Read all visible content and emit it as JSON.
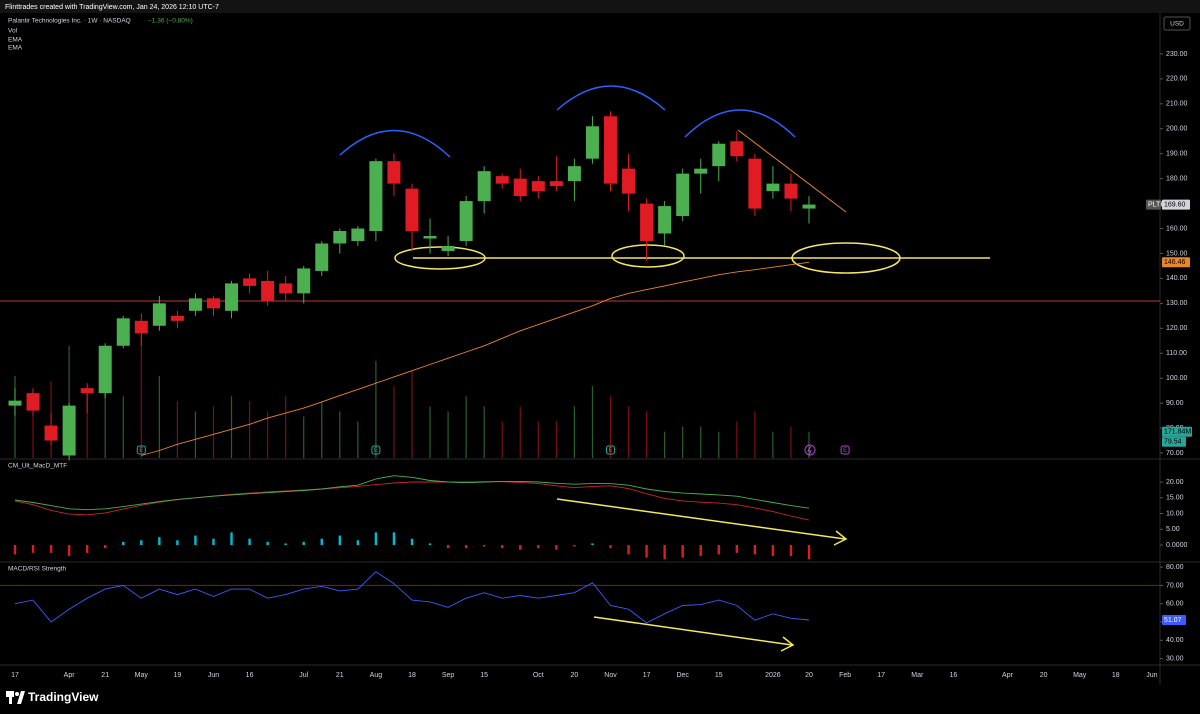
{
  "header": {
    "attribution": "Flinttrades created with TradingView.com, Jan 24, 2026 12:10 UTC-7",
    "brand": "TradingView"
  },
  "chart_data": [
    {
      "type": "candlestick",
      "title": "Palantir Technologies Inc. · 1W · NASDAQ",
      "change": "−1.36 (−0.80%)",
      "change_color": "#4caf50",
      "indicator_labels": [
        "Vol",
        "EMA",
        "EMA"
      ],
      "currency": "USD",
      "x": [
        0,
        1,
        2,
        3,
        4,
        5,
        6,
        7,
        8,
        9,
        10,
        11,
        12,
        13,
        14,
        15,
        16,
        17,
        18,
        19,
        20,
        21,
        22,
        23,
        24,
        25,
        26,
        27,
        28,
        29,
        30,
        31,
        32,
        33,
        34,
        35,
        36,
        37,
        38,
        39,
        40,
        41,
        42,
        43,
        44
      ],
      "open": [
        89,
        94,
        81,
        69,
        96,
        94,
        113,
        123,
        121,
        125,
        127,
        132,
        127,
        140,
        139,
        138,
        134,
        143,
        154,
        155,
        159,
        187,
        176,
        156,
        151,
        155,
        171,
        181,
        180,
        179,
        179,
        179,
        188,
        205,
        184,
        170,
        158,
        165,
        182,
        185,
        195,
        188,
        175,
        178,
        168
      ],
      "high": [
        96,
        96,
        86,
        90,
        98,
        114,
        125,
        126,
        133,
        127,
        134,
        133,
        139,
        142,
        143,
        141,
        145,
        155,
        160,
        161,
        188,
        190,
        178,
        164,
        157,
        173,
        185,
        182,
        184,
        181,
        189,
        188,
        205,
        207,
        190,
        172,
        171,
        184,
        188,
        195,
        199,
        190,
        185,
        182,
        173
      ],
      "low": [
        85,
        85,
        73,
        67,
        86,
        92,
        112,
        113,
        119,
        120,
        125,
        125,
        124,
        134,
        129,
        131,
        130,
        141,
        150,
        153,
        155,
        173,
        151,
        150,
        149,
        153,
        166,
        176,
        171,
        172,
        175,
        171,
        186,
        175,
        167,
        147,
        153,
        163,
        174,
        179,
        187,
        165,
        172,
        167,
        162
      ],
      "close": [
        91,
        87,
        75,
        89,
        94,
        113,
        124,
        118,
        130,
        123,
        132,
        128,
        138,
        137,
        131,
        134,
        144,
        154,
        159,
        160,
        187,
        178,
        159,
        157,
        153,
        171,
        183,
        178,
        173,
        175,
        177,
        185,
        201,
        178,
        174,
        155,
        169,
        182,
        184,
        194,
        189,
        168,
        178,
        172,
        169.6
      ],
      "up_color": "#4caf50",
      "down_color": "#e01b24",
      "ylim": [
        68,
        246
      ],
      "yticks": [
        {
          "value": 70,
          "label": "70.00"
        },
        {
          "value": 80,
          "label": "80.00"
        },
        {
          "value": 90,
          "label": "90.00"
        },
        {
          "value": 100,
          "label": "100.00"
        },
        {
          "value": 110,
          "label": "110.00"
        },
        {
          "value": 120,
          "label": "120.00"
        },
        {
          "value": 130,
          "label": "130.00"
        },
        {
          "value": 140,
          "label": "140.00"
        },
        {
          "value": 150,
          "label": "150.00"
        },
        {
          "value": 160,
          "label": "160.00"
        },
        {
          "value": 170,
          "label": "170.00"
        },
        {
          "value": 180,
          "label": "180.00"
        },
        {
          "value": 190,
          "label": "190.00"
        },
        {
          "value": 200,
          "label": "200.00"
        },
        {
          "value": 210,
          "label": "210.00"
        },
        {
          "value": 220,
          "label": "220.00"
        },
        {
          "value": 230,
          "label": "230.00"
        }
      ],
      "xlim": [
        -0.83,
        63.45
      ],
      "xticks": [
        {
          "value": 0,
          "label": "17"
        },
        {
          "value": 3,
          "label": "Apr"
        },
        {
          "value": 5,
          "label": "21"
        },
        {
          "value": 7,
          "label": "May"
        },
        {
          "value": 9,
          "label": "19"
        },
        {
          "value": 11,
          "label": "Jun"
        },
        {
          "value": 13,
          "label": "16"
        },
        {
          "value": 16,
          "label": "Jul"
        },
        {
          "value": 18,
          "label": "21"
        },
        {
          "value": 20,
          "label": "Aug"
        },
        {
          "value": 22,
          "label": "18"
        },
        {
          "value": 24,
          "label": "Sep"
        },
        {
          "value": 26,
          "label": "15"
        },
        {
          "value": 29,
          "label": "Oct"
        },
        {
          "value": 31,
          "label": "20"
        },
        {
          "value": 33,
          "label": "Nov"
        },
        {
          "value": 35,
          "label": "17"
        },
        {
          "value": 37,
          "label": "Dec"
        },
        {
          "value": 39,
          "label": "15"
        },
        {
          "value": 42,
          "label": "2026"
        },
        {
          "value": 44,
          "label": "20"
        },
        {
          "value": 46,
          "label": "Feb"
        },
        {
          "value": 48,
          "label": "17"
        },
        {
          "value": 50,
          "label": "Mar"
        },
        {
          "value": 52,
          "label": "16"
        },
        {
          "value": 55,
          "label": "Apr"
        },
        {
          "value": 57,
          "label": "20"
        },
        {
          "value": 59,
          "label": "May"
        },
        {
          "value": 61,
          "label": "18"
        },
        {
          "value": 63,
          "label": "Jun"
        }
      ],
      "volume": {
        "values": [
          536,
          437,
          502,
          733,
          470,
          634,
          403,
          832,
          535,
          370,
          304,
          337,
          403,
          370,
          304,
          403,
          271,
          370,
          304,
          238,
          634,
          469,
          568,
          337,
          304,
          403,
          337,
          238,
          337,
          238,
          238,
          337,
          469,
          403,
          337,
          304,
          172,
          205,
          205,
          172,
          238,
          304,
          172,
          205,
          171.84
        ],
        "ylim": [
          0,
          2900
        ],
        "label": "171.84M",
        "ma_label": "79.54",
        "color": "#26a69a"
      },
      "ema": {
        "values": [
          null,
          null,
          null,
          null,
          null,
          null,
          null,
          69,
          71,
          73.5,
          75.5,
          77.5,
          79.5,
          81.5,
          84,
          86,
          88,
          90.5,
          93,
          95.5,
          98,
          100.5,
          103,
          105.5,
          108,
          110.5,
          113,
          116,
          119,
          121.5,
          124,
          126.5,
          129,
          132,
          134,
          135.5,
          137,
          138.5,
          140,
          141.5,
          142.6,
          143.5,
          144.5,
          145.5,
          146.46
        ],
        "color": "#e8862a",
        "label": "146.46"
      },
      "price_tag": {
        "symbol": "PLTR",
        "label": "169.60"
      },
      "events": [
        {
          "x": 7,
          "label": "E",
          "color": "#26a69a"
        },
        {
          "x": 20,
          "label": "E",
          "color": "#26a69a"
        },
        {
          "x": 33,
          "label": "E",
          "color": "#26a69a"
        },
        {
          "x": 46,
          "label": "E",
          "color": "#b040d0"
        }
      ]
    },
    {
      "type": "macd",
      "title": "CM_Ult_MacD_MTF",
      "macd": {
        "color": "#4caf50",
        "values": [
          14.3,
          13.5,
          12.5,
          11.5,
          11.2,
          11.5,
          12.2,
          13,
          13.8,
          14.5,
          15,
          15.5,
          15.9,
          16.3,
          16.6,
          17,
          17.3,
          17.8,
          18.5,
          19,
          21,
          22,
          21.5,
          20.5,
          20,
          19.8,
          20,
          20.2,
          20.2,
          20,
          19.6,
          19.3,
          19.5,
          19.5,
          19,
          17.8,
          17,
          16.5,
          16.2,
          15.9,
          15.5,
          14.5,
          13.5,
          12.5,
          11.7
        ]
      },
      "signal": {
        "color": "#c62828",
        "values": [
          14,
          12.8,
          11,
          9.8,
          9.6,
          10.2,
          11.4,
          12.6,
          13.6,
          14.4,
          15,
          15.6,
          16.1,
          16.5,
          16.9,
          17.2,
          17.5,
          17.8,
          18.2,
          18.6,
          19.2,
          19.7,
          20,
          20,
          20,
          20,
          20.1,
          20.1,
          19.9,
          19.5,
          18.8,
          18.2,
          18.6,
          18.8,
          17.9,
          16.3,
          14.8,
          14,
          13.6,
          13.3,
          12.8,
          11.8,
          10.6,
          9.2,
          7.9
        ]
      },
      "histogram": {
        "up_color": "#00bcd4",
        "down_color": "#e01b24",
        "values": [
          -3,
          -2.5,
          -2.5,
          -3.5,
          -2.5,
          -1,
          1,
          1.5,
          2.5,
          1.5,
          3,
          2,
          4,
          2,
          1,
          0.5,
          1,
          2,
          3,
          1.5,
          4,
          4,
          2,
          0.5,
          -1,
          -1,
          -0.5,
          -1,
          -1.5,
          -1,
          -1.5,
          -0.5,
          0.5,
          -1,
          -3,
          -4,
          -4.5,
          -4,
          -3.5,
          -3,
          -2.5,
          -3,
          -3.5,
          -3.5,
          -4.5
        ]
      },
      "ylim": [
        -5.4,
        27
      ],
      "yticks": [
        {
          "value": 0,
          "label": "0.0000"
        },
        {
          "value": 5,
          "label": "5.00"
        },
        {
          "value": 10,
          "label": "10.00"
        },
        {
          "value": 15,
          "label": "15.00"
        },
        {
          "value": 20,
          "label": "20.00"
        }
      ]
    },
    {
      "type": "line",
      "title": "MACD/RSI Strength",
      "series": [
        {
          "color": "#3d5afe",
          "values": [
            60,
            62,
            50,
            57,
            63,
            68,
            70,
            63,
            68,
            65,
            68,
            64,
            68,
            68,
            63,
            65,
            68,
            69.5,
            67,
            68,
            77.5,
            71,
            62,
            61,
            58,
            63,
            66,
            63,
            64.5,
            63,
            64.5,
            66,
            71.5,
            59,
            57,
            49.5,
            54.5,
            59,
            59.5,
            62,
            59,
            51,
            54.5,
            52,
            51.07
          ]
        }
      ],
      "value_label": "51.07",
      "level": 70,
      "level_color": "#8b1a1a",
      "ylim": [
        26.5,
        82.8
      ],
      "yticks": [
        {
          "value": 30,
          "label": "30.00"
        },
        {
          "value": 40,
          "label": "40.00"
        },
        {
          "value": 50,
          "label": "50.00"
        },
        {
          "value": 60,
          "label": "60.00"
        },
        {
          "value": 70,
          "label": "70.00"
        },
        {
          "value": 80,
          "label": "80.00"
        }
      ]
    }
  ]
}
